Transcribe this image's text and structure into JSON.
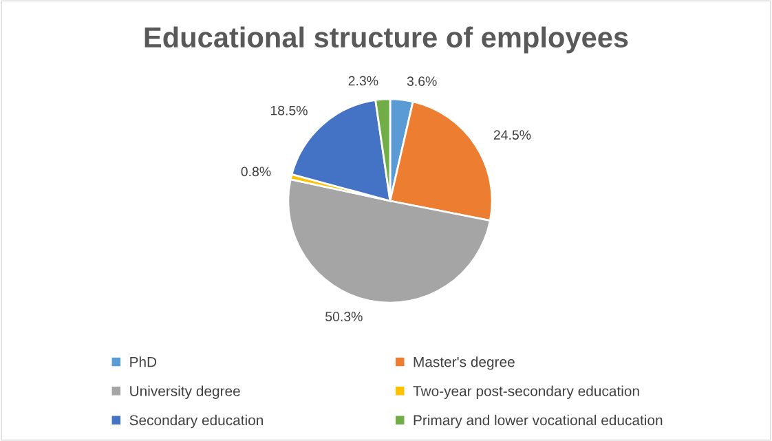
{
  "chart_data": {
    "type": "pie",
    "title": "Educational structure of employees",
    "categories": [
      "PhD",
      "Master's degree",
      "University degree",
      "Two-year post-secondary education",
      "Secondary education",
      "Primary and lower vocational education"
    ],
    "values": [
      3.6,
      24.5,
      50.3,
      0.8,
      18.5,
      2.3
    ],
    "colors": [
      "#5b9bd5",
      "#ed7d31",
      "#a5a5a5",
      "#ffc000",
      "#4472c4",
      "#70ad47"
    ],
    "value_labels": [
      "3.6%",
      "24.5%",
      "50.3%",
      "0.8%",
      "18.5%",
      "2.3%"
    ],
    "legend": "bottom"
  }
}
